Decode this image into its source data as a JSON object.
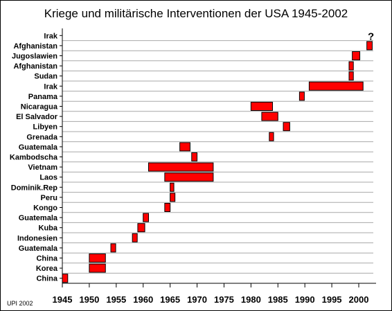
{
  "title": "Kriege und militärische Interventionen der USA 1945-2002",
  "credit": "UPI 2002",
  "chart_data": {
    "type": "bar",
    "orientation": "horizontal-range",
    "title": "Kriege und militärische Interventionen der USA 1945-2002",
    "xlabel": "",
    "ylabel": "",
    "xlim": [
      1945,
      2002.7
    ],
    "x_ticks": [
      1945,
      1950,
      1955,
      1960,
      1965,
      1970,
      1975,
      1980,
      1985,
      1990,
      1995,
      2000
    ],
    "grid": true,
    "bar_color": "#ff0000",
    "categories": [
      "Irak",
      "Afghanistan",
      "Jugoslawien",
      "Afghanistan",
      "Sudan",
      "Irak",
      "Panama",
      "Nicaragua",
      "El Salvador",
      "Libyen",
      "Grenada",
      "Guatemala",
      "Kambodscha",
      "Vietnam",
      "Laos",
      "Dominik.Rep",
      "Peru",
      "Kongo",
      "Guatemala",
      "Kuba",
      "Indonesien",
      "Guatemala",
      "China",
      "Korea",
      "China"
    ],
    "ranges": [
      null,
      [
        2001.5,
        2002.5
      ],
      [
        1998.8,
        2000.2
      ],
      [
        1998.2,
        1999.0
      ],
      [
        1998.2,
        1999.0
      ],
      [
        1990.8,
        2000.8
      ],
      [
        1989.0,
        1989.9
      ],
      [
        1980.0,
        1984.0
      ],
      [
        1982.0,
        1985.0
      ],
      [
        1986.0,
        1987.2
      ],
      [
        1983.4,
        1984.2
      ],
      [
        1966.8,
        1968.7
      ],
      [
        1969.0,
        1970.0
      ],
      [
        1961.0,
        1973.0
      ],
      [
        1964.0,
        1973.0
      ],
      [
        1965.0,
        1965.7
      ],
      [
        1965.0,
        1965.9
      ],
      [
        1964.0,
        1965.0
      ],
      [
        1960.0,
        1961.0
      ],
      [
        1959.0,
        1960.3
      ],
      [
        1958.0,
        1958.9
      ],
      [
        1954.0,
        1954.9
      ],
      [
        1950.0,
        1953.0
      ],
      [
        1950.0,
        1953.0
      ],
      [
        1945.0,
        1946.0
      ]
    ],
    "annotations": [
      {
        "row": 0,
        "year": 2002,
        "text": "?"
      }
    ]
  }
}
